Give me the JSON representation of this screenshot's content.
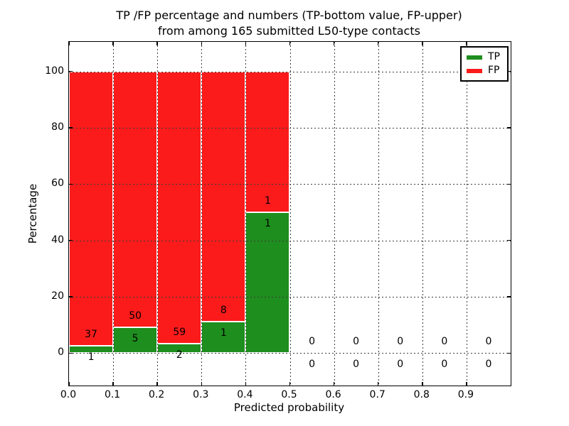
{
  "title": {
    "line1": "TP /FP percentage and numbers (TP-bottom value, FP-upper)",
    "line2": "from among 165 submitted L50-type contacts"
  },
  "axes": {
    "xlabel": "Predicted probability",
    "ylabel": "Percentage",
    "xtick_labels": [
      "0.0",
      "0.1",
      "0.2",
      "0.3",
      "0.4",
      "0.5",
      "0.6",
      "0.7",
      "0.8",
      "0.9"
    ],
    "ytick_labels": [
      "0",
      "20",
      "40",
      "60",
      "80",
      "100"
    ]
  },
  "legend": {
    "entries": [
      {
        "label": "TP",
        "color": "#1e8e1e"
      },
      {
        "label": "FP",
        "color": "#fb1b1b"
      }
    ]
  },
  "colors": {
    "tp_green": "#1e8e1e",
    "fp_red": "#fb1b1b",
    "grid": "#3d3d3d",
    "axis": "#000000",
    "background": "#ffffff"
  },
  "chart_data": {
    "type": "bar",
    "stacked": true,
    "title": "TP /FP percentage and numbers (TP-bottom value, FP-upper) from among 165 submitted L50-type contacts",
    "xlabel": "Predicted probability",
    "ylabel": "Percentage",
    "categories": [
      "0.0-0.1",
      "0.1-0.2",
      "0.2-0.3",
      "0.3-0.4",
      "0.4-0.5",
      "0.5-0.6",
      "0.6-0.7",
      "0.7-0.8",
      "0.8-0.9",
      "0.9-1.0"
    ],
    "bin_edges": [
      0.0,
      0.1,
      0.2,
      0.3,
      0.4,
      0.5,
      0.6,
      0.7,
      0.8,
      0.9,
      1.0
    ],
    "series": [
      {
        "name": "TP",
        "color": "#1e8e1e",
        "counts": [
          1,
          5,
          2,
          1,
          1,
          0,
          0,
          0,
          0,
          0
        ],
        "percent": [
          2.63,
          9.09,
          3.28,
          11.11,
          50.0,
          0,
          0,
          0,
          0,
          0
        ]
      },
      {
        "name": "FP",
        "color": "#fb1b1b",
        "counts": [
          37,
          50,
          59,
          8,
          1,
          0,
          0,
          0,
          0,
          0
        ],
        "percent": [
          97.37,
          90.91,
          96.72,
          88.89,
          50.0,
          0,
          0,
          0,
          0,
          0
        ]
      }
    ],
    "total_contacts": 165,
    "xlim": [
      0.0,
      1.0
    ],
    "ylim": [
      -11.5,
      110.5
    ],
    "xtick_values": [
      0.0,
      0.1,
      0.2,
      0.3,
      0.4,
      0.5,
      0.6,
      0.7,
      0.8,
      0.9
    ],
    "ytick_values": [
      0,
      20,
      40,
      60,
      80,
      100
    ],
    "grid": "dotted",
    "grid_above_bars": true,
    "legend_position": "upper right",
    "annotations": "FP count printed just above TP/FP boundary, TP count just below; empty bins show 0 above and below zero line"
  }
}
